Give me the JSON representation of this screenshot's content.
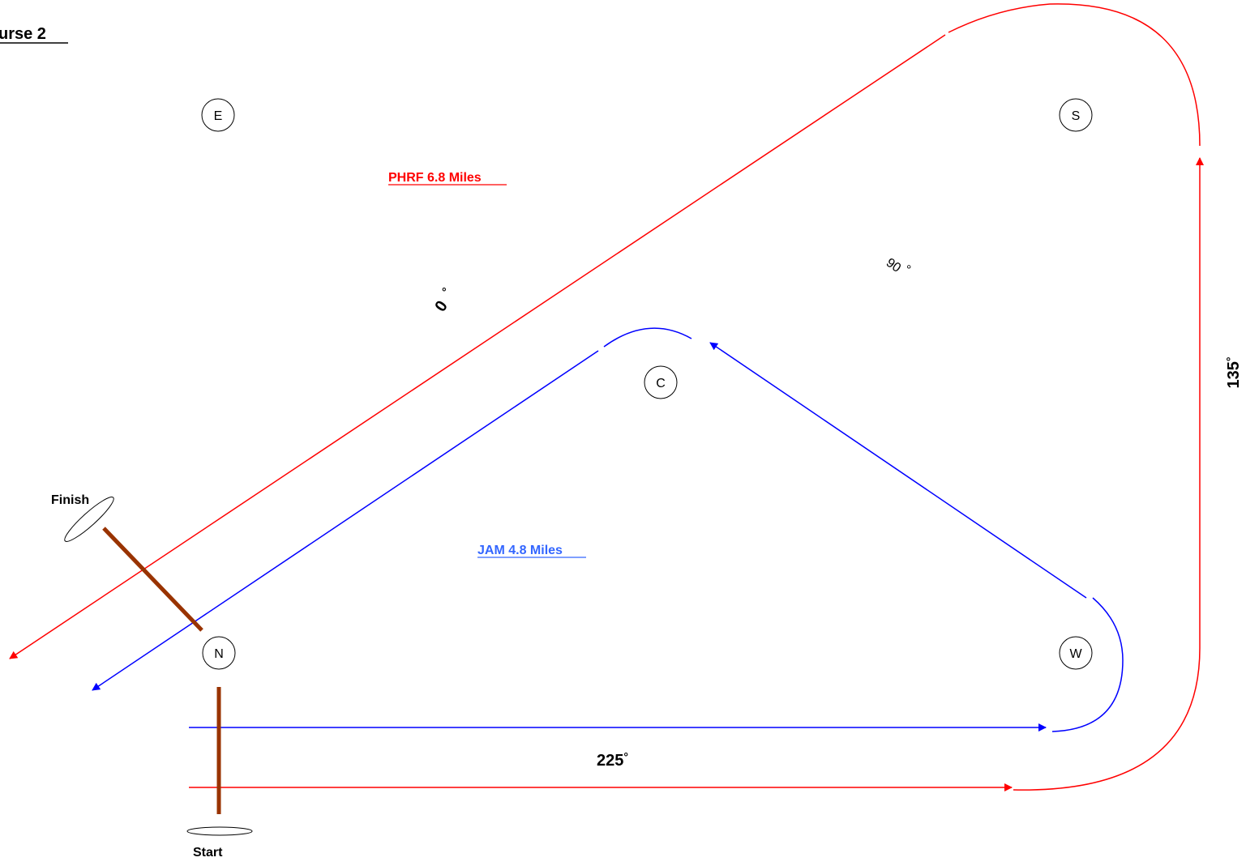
{
  "title": "urse 2",
  "colors": {
    "phrf": "#ff0000",
    "jam": "#0000ff",
    "jam_label": "#3366ff",
    "line_marker": "#993300",
    "text": "#000000"
  },
  "courses": {
    "phrf": {
      "label": "PHRF 6.8 Miles"
    },
    "jam": {
      "label": "JAM 4.8 Miles"
    }
  },
  "marks": {
    "E": "E",
    "S": "S",
    "C": "C",
    "W": "W",
    "N": "N"
  },
  "bearings": {
    "leg_0": "0",
    "leg_90": "90",
    "leg_135": "135",
    "leg_225": "225",
    "degree_symbol": "°"
  },
  "lines": {
    "finish": "Finish",
    "start": "Start"
  }
}
